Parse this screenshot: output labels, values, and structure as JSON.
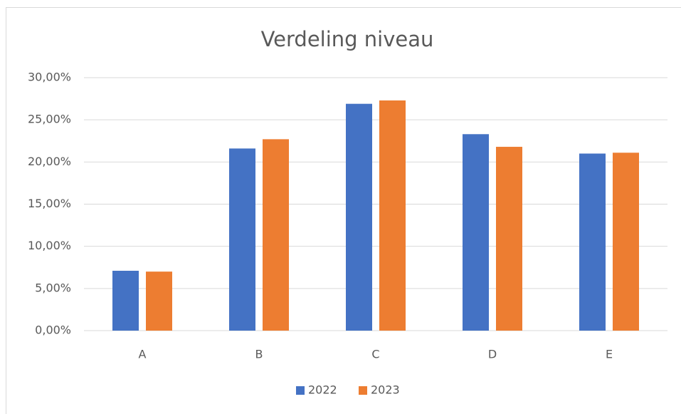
{
  "chart_data": {
    "type": "bar",
    "title": "Verdeling niveau",
    "categories": [
      "A",
      "B",
      "C",
      "D",
      "E"
    ],
    "series": [
      {
        "name": "2022",
        "color": "#4472c4",
        "values": [
          7.1,
          21.6,
          26.9,
          23.3,
          21.0
        ]
      },
      {
        "name": "2023",
        "color": "#ed7d31",
        "values": [
          7.0,
          22.7,
          27.3,
          21.8,
          21.1
        ]
      }
    ],
    "ylim": [
      0,
      30
    ],
    "yticks": [
      {
        "value": 0,
        "label": "0,00%"
      },
      {
        "value": 5,
        "label": "5,00%"
      },
      {
        "value": 10,
        "label": "10,00%"
      },
      {
        "value": 15,
        "label": "15,00%"
      },
      {
        "value": 20,
        "label": "20,00%"
      },
      {
        "value": 25,
        "label": "25,00%"
      },
      {
        "value": 30,
        "label": "30,00%"
      }
    ],
    "grid": true,
    "legend": "bottom"
  }
}
